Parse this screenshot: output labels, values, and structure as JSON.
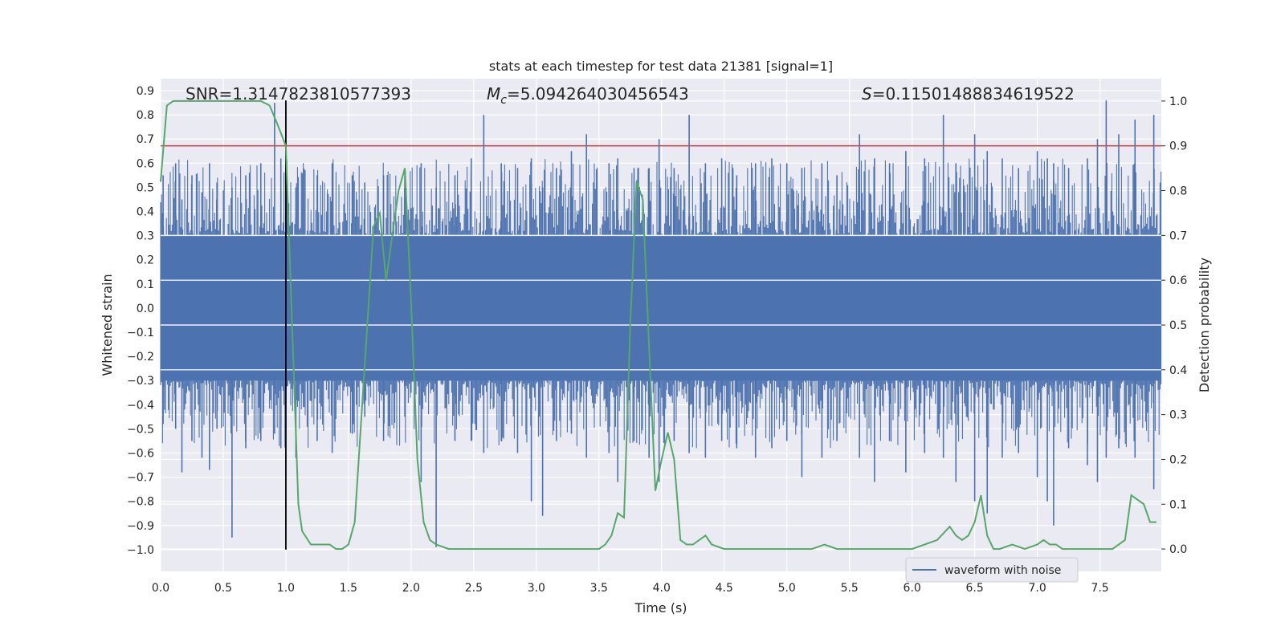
{
  "chart_data": {
    "type": "line",
    "title": "stats at each timestep for test data 21381 [signal=1]",
    "xlabel": "Time (s)",
    "ylabel": "Whitened strain",
    "y2label": "Detection probability",
    "xlim": [
      0,
      7.99
    ],
    "ylim": [
      -1.09,
      0.95
    ],
    "y2lim": [
      -0.05,
      1.05
    ],
    "xticks": [
      0.0,
      0.5,
      1.0,
      1.5,
      2.0,
      2.5,
      3.0,
      3.5,
      4.0,
      4.5,
      5.0,
      5.5,
      6.0,
      6.5,
      7.0,
      7.5
    ],
    "yticks": [
      0.9,
      0.8,
      0.7,
      0.6,
      0.5,
      0.4,
      0.3,
      0.2,
      0.1,
      0.0,
      -0.1,
      -0.2,
      -0.3,
      -0.4,
      -0.5,
      -0.6,
      -0.7,
      -0.8,
      -0.9,
      -1.0
    ],
    "y2ticks": [
      1.0,
      0.9,
      0.8,
      0.7,
      0.6,
      0.5,
      0.4,
      0.3,
      0.2,
      0.1,
      0.0
    ],
    "grid": true,
    "legend": {
      "position": "lower-right",
      "entries": [
        "waveform with noise"
      ]
    },
    "annotations": {
      "snr": "SNR=1.3147823810577393",
      "mc_symbol": "M",
      "mc_sub": "c",
      "mc_value": "=5.094264030456543",
      "s_symbol": "S",
      "s_value": "=0.11501488834619522"
    },
    "threshold_y2": 0.9,
    "signal_marker_x": 1.0,
    "signal_marker_ylim": [
      -1.0,
      0.86
    ],
    "series": [
      {
        "name": "waveform with noise",
        "axis": "left",
        "color": "#4c72b0",
        "spikes": [
          [
            0.02,
            0.55,
            -0.48
          ],
          [
            0.12,
            0.6,
            -0.5
          ],
          [
            0.17,
            0.45,
            -0.68
          ],
          [
            0.25,
            0.55,
            -0.55
          ],
          [
            0.33,
            0.48,
            -0.62
          ],
          [
            0.39,
            0.6,
            -0.67
          ],
          [
            0.45,
            0.52,
            -0.5
          ],
          [
            0.57,
            0.5,
            -0.95
          ],
          [
            0.68,
            0.55,
            -0.58
          ],
          [
            0.8,
            0.6,
            -0.55
          ],
          [
            0.91,
            0.85,
            -0.52
          ],
          [
            0.96,
            0.62,
            -0.58
          ],
          [
            1.08,
            0.5,
            -0.62
          ],
          [
            1.25,
            0.55,
            -0.55
          ],
          [
            1.37,
            0.6,
            -0.6
          ],
          [
            1.53,
            0.55,
            -0.52
          ],
          [
            1.63,
            0.52,
            -0.45
          ],
          [
            1.78,
            0.55,
            -0.55
          ],
          [
            1.95,
            0.58,
            -0.45
          ],
          [
            2.08,
            0.6,
            -0.72
          ],
          [
            2.2,
            0.5,
            -0.99
          ],
          [
            2.35,
            0.55,
            -0.55
          ],
          [
            2.48,
            0.62,
            -0.55
          ],
          [
            2.58,
            0.8,
            -0.6
          ],
          [
            2.72,
            0.6,
            -0.55
          ],
          [
            2.85,
            0.58,
            -0.6
          ],
          [
            2.96,
            0.62,
            -0.8
          ],
          [
            3.05,
            0.5,
            -0.86
          ],
          [
            3.16,
            0.58,
            -0.55
          ],
          [
            3.28,
            0.65,
            -0.52
          ],
          [
            3.4,
            0.72,
            -0.62
          ],
          [
            3.58,
            0.6,
            -0.6
          ],
          [
            3.65,
            0.62,
            -0.72
          ],
          [
            3.78,
            0.58,
            -0.55
          ],
          [
            3.9,
            0.58,
            -0.62
          ],
          [
            3.98,
            0.7,
            -0.72
          ],
          [
            4.1,
            0.58,
            -0.55
          ],
          [
            4.22,
            0.8,
            -0.6
          ],
          [
            4.35,
            0.6,
            -0.62
          ],
          [
            4.48,
            0.62,
            -0.55
          ],
          [
            4.6,
            0.55,
            -0.58
          ],
          [
            4.75,
            0.6,
            -0.62
          ],
          [
            4.88,
            0.62,
            -0.58
          ],
          [
            5.0,
            0.6,
            -0.55
          ],
          [
            5.12,
            0.58,
            -0.7
          ],
          [
            5.28,
            0.6,
            -0.62
          ],
          [
            5.4,
            0.55,
            -0.55
          ],
          [
            5.58,
            0.72,
            -0.62
          ],
          [
            5.7,
            0.62,
            -0.72
          ],
          [
            5.82,
            0.6,
            -0.55
          ],
          [
            5.95,
            0.65,
            -0.68
          ],
          [
            6.1,
            0.62,
            -0.6
          ],
          [
            6.25,
            0.8,
            -0.62
          ],
          [
            6.35,
            0.6,
            -0.72
          ],
          [
            6.5,
            0.72,
            -0.8
          ],
          [
            6.6,
            0.65,
            -0.85
          ],
          [
            6.72,
            0.62,
            -0.62
          ],
          [
            6.85,
            0.58,
            -0.6
          ],
          [
            7.0,
            0.65,
            -0.7
          ],
          [
            7.08,
            0.62,
            -0.8
          ],
          [
            7.13,
            0.6,
            -0.9
          ],
          [
            7.25,
            0.58,
            -0.58
          ],
          [
            7.4,
            0.62,
            -0.65
          ],
          [
            7.48,
            0.7,
            -0.72
          ],
          [
            7.55,
            0.86,
            -0.62
          ],
          [
            7.65,
            0.72,
            -0.58
          ],
          [
            7.78,
            0.78,
            -0.62
          ],
          [
            7.93,
            0.8,
            -0.75
          ]
        ]
      },
      {
        "name": "",
        "axis": "right",
        "color": "#55a868",
        "x": [
          0.0,
          0.05,
          0.1,
          0.15,
          0.2,
          0.3,
          0.4,
          0.5,
          0.6,
          0.7,
          0.8,
          0.87,
          0.93,
          1.0,
          1.05,
          1.1,
          1.13,
          1.2,
          1.3,
          1.35,
          1.4,
          1.45,
          1.5,
          1.55,
          1.6,
          1.65,
          1.7,
          1.75,
          1.8,
          1.85,
          1.9,
          1.95,
          2.0,
          2.05,
          2.1,
          2.15,
          2.2,
          2.3,
          2.5,
          2.8,
          3.0,
          3.2,
          3.5,
          3.55,
          3.6,
          3.65,
          3.7,
          3.75,
          3.8,
          3.85,
          3.9,
          3.95,
          4.0,
          4.05,
          4.1,
          4.15,
          4.2,
          4.25,
          4.3,
          4.35,
          4.4,
          4.5,
          4.8,
          5.0,
          5.2,
          5.3,
          5.4,
          5.5,
          5.8,
          6.0,
          6.1,
          6.2,
          6.3,
          6.35,
          6.4,
          6.45,
          6.5,
          6.55,
          6.6,
          6.65,
          6.7,
          6.8,
          6.9,
          7.0,
          7.05,
          7.1,
          7.15,
          7.2,
          7.3,
          7.5,
          7.6,
          7.7,
          7.75,
          7.8,
          7.85,
          7.9,
          7.95
        ],
        "values": [
          0.82,
          0.99,
          1.0,
          1.0,
          1.0,
          1.0,
          1.0,
          1.0,
          1.0,
          1.0,
          1.0,
          0.99,
          0.95,
          0.9,
          0.5,
          0.1,
          0.04,
          0.01,
          0.01,
          0.01,
          0.0,
          0.0,
          0.01,
          0.06,
          0.28,
          0.5,
          0.72,
          0.75,
          0.6,
          0.7,
          0.8,
          0.85,
          0.55,
          0.2,
          0.06,
          0.02,
          0.01,
          0.0,
          0.0,
          0.0,
          0.0,
          0.0,
          0.0,
          0.01,
          0.03,
          0.08,
          0.07,
          0.5,
          0.82,
          0.78,
          0.45,
          0.13,
          0.2,
          0.26,
          0.2,
          0.02,
          0.01,
          0.01,
          0.02,
          0.03,
          0.01,
          0.0,
          0.0,
          0.0,
          0.0,
          0.01,
          0.0,
          0.0,
          0.0,
          0.0,
          0.01,
          0.02,
          0.05,
          0.03,
          0.02,
          0.03,
          0.06,
          0.12,
          0.03,
          0.0,
          0.0,
          0.01,
          0.0,
          0.01,
          0.02,
          0.01,
          0.01,
          0.0,
          0.0,
          0.0,
          0.0,
          0.02,
          0.12,
          0.11,
          0.1,
          0.06,
          0.06
        ]
      }
    ]
  }
}
